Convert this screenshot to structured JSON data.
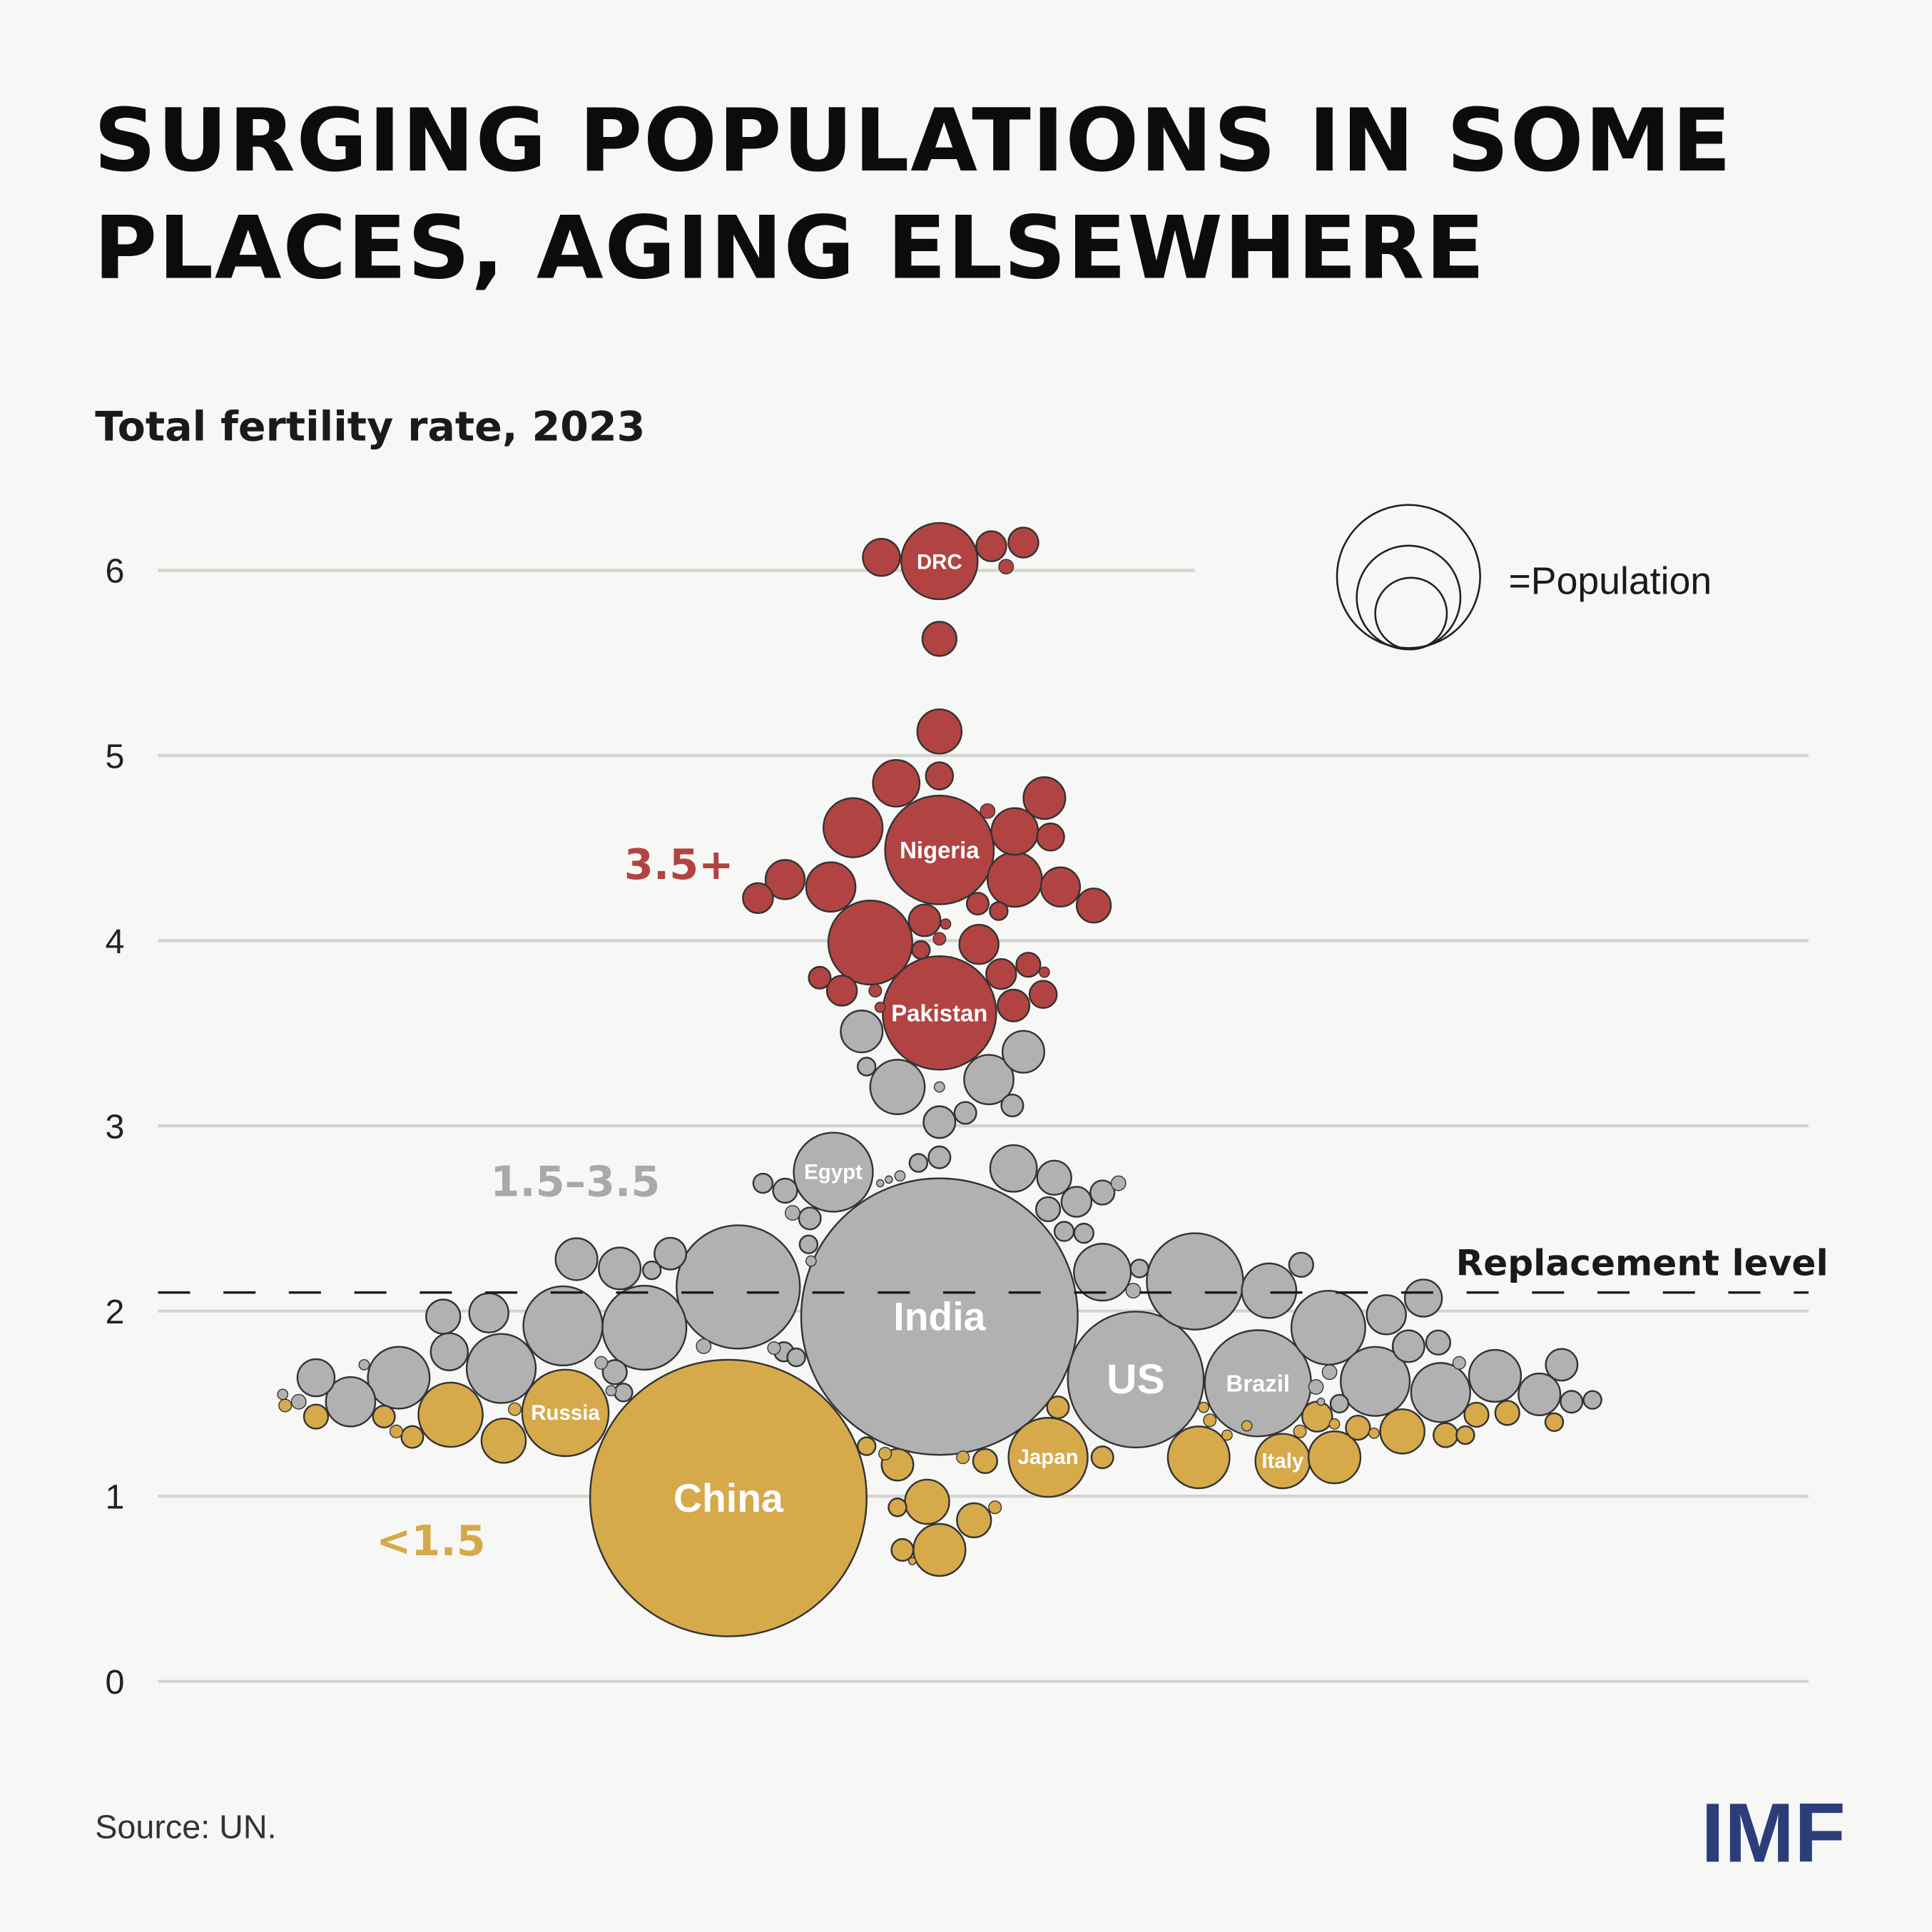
{
  "title_line1": "SURGING POPULATIONS IN SOME",
  "title_line2": "PLACES, AGING ELSEWHERE",
  "source": "Source: UN.",
  "logo": "IMF",
  "colors": {
    "high": "#b14442",
    "mid": "#b1b1b1",
    "low": "#d6a94b",
    "logo": "#2c3e7a",
    "background": "#f7f7f5"
  },
  "chart_data": {
    "type": "scatter",
    "subtype": "bubble-beeswarm",
    "title": "Total fertility rate, 2023",
    "ylim": [
      0,
      6
    ],
    "yticks": [
      "0",
      "1",
      "2",
      "3",
      "4",
      "5",
      "6"
    ],
    "grid": true,
    "size_legend": "=Population",
    "size_unit_note": "bubble area proportional to population (estimated, millions)",
    "reference_line": {
      "value": 2.1,
      "label": "Replacement level",
      "style": "dashed"
    },
    "groups": [
      {
        "key": "high",
        "label": "3.5+"
      },
      {
        "key": "mid",
        "label": "1.5–3.5"
      },
      {
        "key": "low",
        "label": "<1.5"
      }
    ],
    "bubbles": [
      [
        6.05,
        110,
        "high",
        "DRC"
      ],
      [
        6.07,
        26,
        "high"
      ],
      [
        6.13,
        17,
        "high"
      ],
      [
        6.15,
        17,
        "high"
      ],
      [
        6.02,
        4,
        "high"
      ],
      [
        5.63,
        22,
        "high"
      ],
      [
        5.13,
        37,
        "high"
      ],
      [
        4.85,
        41,
        "high"
      ],
      [
        4.89,
        14,
        "high"
      ],
      [
        4.49,
        223,
        "high",
        "Nigeria"
      ],
      [
        4.61,
        66,
        "high"
      ],
      [
        4.77,
        33,
        "high"
      ],
      [
        4.59,
        41,
        "high"
      ],
      [
        4.56,
        14,
        "high"
      ],
      [
        4.7,
        4,
        "high"
      ],
      [
        4.33,
        29,
        "high"
      ],
      [
        4.29,
        46,
        "high"
      ],
      [
        4.23,
        17,
        "high"
      ],
      [
        4.33,
        56,
        "high"
      ],
      [
        4.29,
        29,
        "high"
      ],
      [
        4.19,
        22,
        "high"
      ],
      [
        3.99,
        133,
        "high"
      ],
      [
        4.11,
        19,
        "high"
      ],
      [
        4.09,
        2,
        "high"
      ],
      [
        3.98,
        29,
        "high"
      ],
      [
        4.2,
        9,
        "high"
      ],
      [
        4.16,
        6,
        "high"
      ],
      [
        3.95,
        6,
        "high"
      ],
      [
        4.01,
        3,
        "high"
      ],
      [
        3.8,
        9,
        "high"
      ],
      [
        3.73,
        17,
        "high"
      ],
      [
        3.82,
        17,
        "high"
      ],
      [
        3.87,
        11,
        "high"
      ],
      [
        3.83,
        2,
        "high"
      ],
      [
        3.71,
        14,
        "high"
      ],
      [
        3.65,
        19,
        "high"
      ],
      [
        3.73,
        3,
        "high"
      ],
      [
        3.64,
        2,
        "high"
      ],
      [
        3.61,
        243,
        "high",
        "Pakistan"
      ],
      [
        3.51,
        33,
        "mid"
      ],
      [
        3.4,
        33,
        "mid"
      ],
      [
        3.21,
        56,
        "mid"
      ],
      [
        3.25,
        46,
        "mid"
      ],
      [
        3.32,
        6,
        "mid"
      ],
      [
        3.11,
        9,
        "mid"
      ],
      [
        3.07,
        9,
        "mid"
      ],
      [
        3.02,
        19,
        "mid"
      ],
      [
        3.21,
        2,
        "mid"
      ],
      [
        2.83,
        9,
        "mid"
      ],
      [
        2.8,
        6,
        "mid"
      ],
      [
        2.73,
        2,
        "mid"
      ],
      [
        2.71,
        1,
        "mid"
      ],
      [
        2.69,
        1,
        "mid"
      ],
      [
        2.75,
        118,
        "mid",
        "Egypt"
      ],
      [
        2.69,
        7,
        "mid"
      ],
      [
        2.65,
        11,
        "mid"
      ],
      [
        2.53,
        4,
        "mid"
      ],
      [
        2.5,
        9,
        "mid"
      ],
      [
        2.36,
        6,
        "mid"
      ],
      [
        2.27,
        2,
        "mid"
      ],
      [
        2.77,
        41,
        "mid"
      ],
      [
        2.72,
        22,
        "mid"
      ],
      [
        2.59,
        17,
        "mid"
      ],
      [
        2.55,
        11,
        "mid"
      ],
      [
        2.64,
        11,
        "mid"
      ],
      [
        2.69,
        4,
        "mid"
      ],
      [
        2.43,
        7,
        "mid"
      ],
      [
        2.42,
        7,
        "mid"
      ],
      [
        1.97,
        1442,
        "mid",
        "India"
      ],
      [
        2.13,
        287,
        "mid"
      ],
      [
        2.28,
        33,
        "mid"
      ],
      [
        2.23,
        33,
        "mid"
      ],
      [
        2.22,
        6,
        "mid"
      ],
      [
        2.31,
        19,
        "mid"
      ],
      [
        1.97,
        22,
        "mid"
      ],
      [
        1.99,
        29,
        "mid"
      ],
      [
        1.92,
        118,
        "mid"
      ],
      [
        1.91,
        133,
        "mid"
      ],
      [
        1.78,
        26,
        "mid"
      ],
      [
        1.69,
        90,
        "mid"
      ],
      [
        1.64,
        72,
        "mid"
      ],
      [
        1.64,
        26,
        "mid"
      ],
      [
        1.51,
        46,
        "mid"
      ],
      [
        1.71,
        2,
        "mid"
      ],
      [
        1.51,
        4,
        "mid"
      ],
      [
        1.55,
        2,
        "mid"
      ],
      [
        1.67,
        11,
        "mid"
      ],
      [
        1.72,
        3,
        "mid"
      ],
      [
        1.56,
        6,
        "mid"
      ],
      [
        1.57,
        2,
        "mid"
      ],
      [
        1.81,
        4,
        "mid"
      ],
      [
        2.21,
        61,
        "mid"
      ],
      [
        2.23,
        6,
        "mid"
      ],
      [
        2.11,
        4,
        "mid"
      ],
      [
        2.16,
        175,
        "mid"
      ],
      [
        2.11,
        56,
        "mid"
      ],
      [
        2.25,
        11,
        "mid"
      ],
      [
        1.91,
        103,
        "mid"
      ],
      [
        1.98,
        29,
        "mid"
      ],
      [
        2.07,
        26,
        "mid"
      ],
      [
        1.81,
        19,
        "mid"
      ],
      [
        1.83,
        11,
        "mid"
      ],
      [
        1.72,
        3,
        "mid"
      ],
      [
        1.63,
        348,
        "mid",
        "US"
      ],
      [
        1.61,
        213,
        "mid",
        "Brazil"
      ],
      [
        1.62,
        90,
        "mid"
      ],
      [
        1.56,
        66,
        "mid"
      ],
      [
        1.65,
        51,
        "mid"
      ],
      [
        1.55,
        33,
        "mid"
      ],
      [
        1.71,
        19,
        "mid"
      ],
      [
        1.51,
        9,
        "mid"
      ],
      [
        1.52,
        6,
        "mid"
      ],
      [
        1.67,
        4,
        "mid"
      ],
      [
        1.59,
        4,
        "mid"
      ],
      [
        1.5,
        6,
        "mid"
      ],
      [
        1.51,
        1,
        "mid"
      ],
      [
        1.78,
        7,
        "mid"
      ],
      [
        1.75,
        6,
        "mid"
      ],
      [
        1.8,
        3,
        "mid"
      ],
      [
        0.99,
        1442,
        "low",
        "China"
      ],
      [
        1.45,
        141,
        "low",
        "Russia"
      ],
      [
        1.44,
        78,
        "low"
      ],
      [
        1.3,
        37,
        "low"
      ],
      [
        1.32,
        9,
        "low"
      ],
      [
        1.43,
        9,
        "low"
      ],
      [
        1.43,
        11,
        "low"
      ],
      [
        1.49,
        3,
        "low"
      ],
      [
        1.35,
        3,
        "low"
      ],
      [
        1.47,
        3,
        "low"
      ],
      [
        1.21,
        118,
        "low",
        "Japan"
      ],
      [
        1.21,
        9,
        "low"
      ],
      [
        1.48,
        9,
        "low"
      ],
      [
        1.21,
        72,
        "low"
      ],
      [
        1.19,
        56,
        "low",
        "Italy"
      ],
      [
        1.21,
        51,
        "low"
      ],
      [
        1.43,
        17,
        "low"
      ],
      [
        1.37,
        11,
        "low"
      ],
      [
        1.35,
        37,
        "low"
      ],
      [
        1.33,
        11,
        "low"
      ],
      [
        1.33,
        6,
        "low"
      ],
      [
        1.44,
        11,
        "low"
      ],
      [
        1.45,
        11,
        "low"
      ],
      [
        1.4,
        6,
        "low"
      ],
      [
        1.35,
        3,
        "low"
      ],
      [
        1.39,
        2,
        "low"
      ],
      [
        1.34,
        2,
        "low"
      ],
      [
        1.38,
        2,
        "low"
      ],
      [
        1.33,
        2,
        "low"
      ],
      [
        1.41,
        3,
        "low"
      ],
      [
        1.48,
        2,
        "low"
      ],
      [
        1.17,
        19,
        "low"
      ],
      [
        1.27,
        6,
        "low"
      ],
      [
        1.23,
        3,
        "low"
      ],
      [
        1.19,
        11,
        "low"
      ],
      [
        1.21,
        3,
        "low"
      ],
      [
        0.97,
        37,
        "low"
      ],
      [
        0.94,
        6,
        "low"
      ],
      [
        0.87,
        22,
        "low"
      ],
      [
        0.94,
        3,
        "low"
      ],
      [
        0.71,
        51,
        "low"
      ],
      [
        0.71,
        9,
        "low"
      ],
      [
        0.65,
        1,
        "low"
      ]
    ]
  }
}
